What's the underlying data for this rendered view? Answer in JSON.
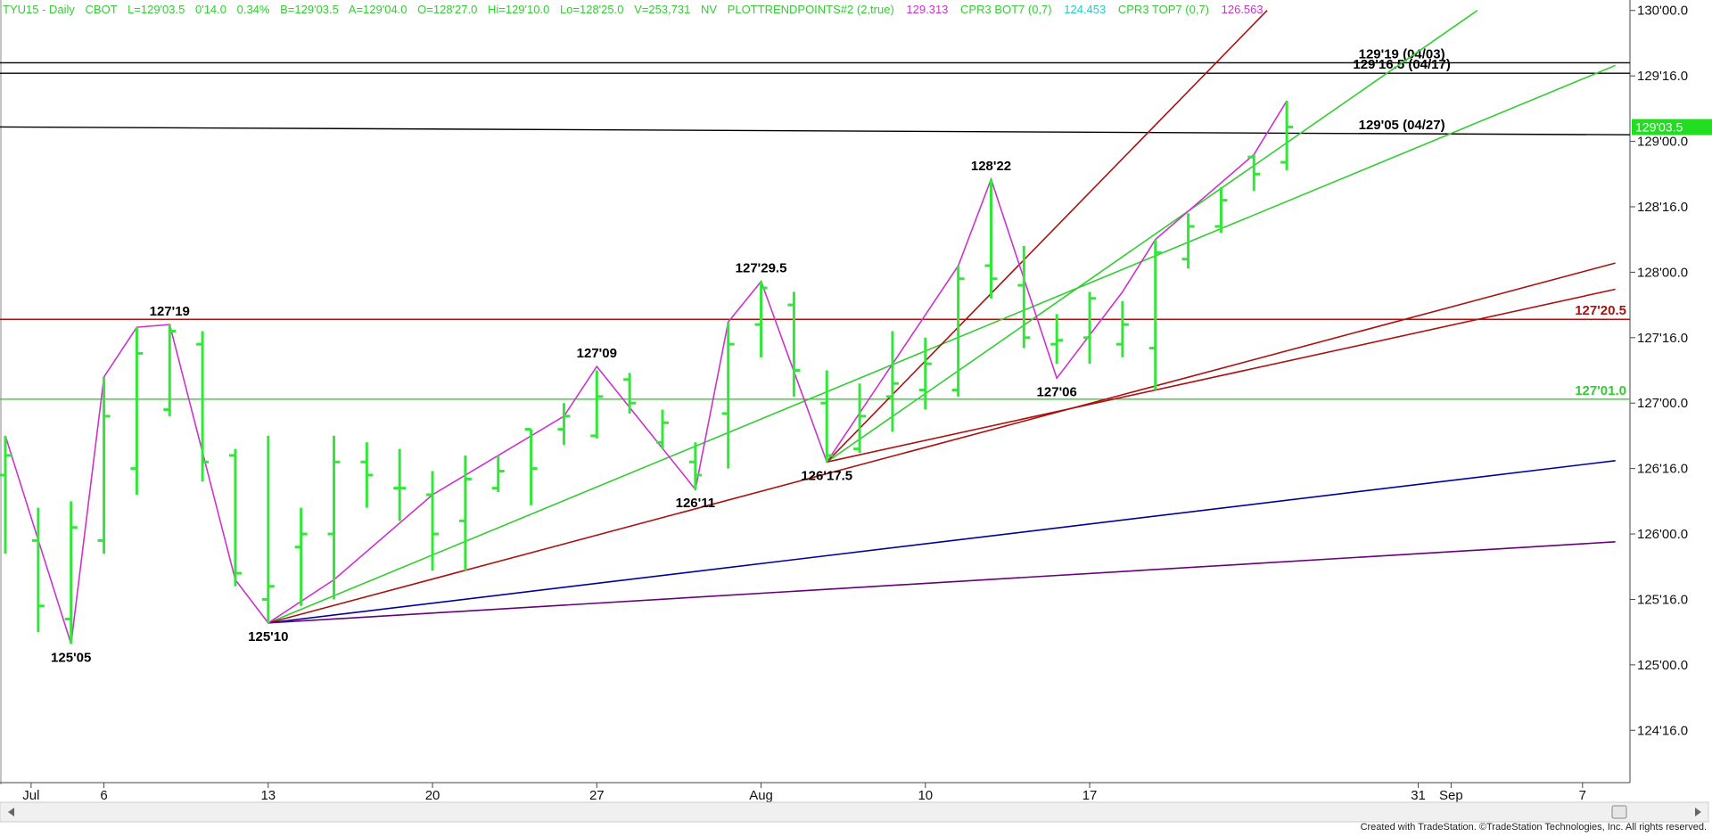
{
  "header": {
    "symbol": "TYU15 - Daily",
    "exchange": "CBOT",
    "last": "L=129'03.5",
    "change": "0'14.0",
    "change_pct": "0.34%",
    "bid": "B=129'03.5",
    "ask": "A=129'04.0",
    "open": "O=128'27.0",
    "high": "Hi=129'10.0",
    "low": "Lo=128'25.0",
    "volume": "V=253,731",
    "nv": "NV",
    "indicator1": "PLOTTRENDPOINTS#2 (2,true)",
    "indicator1_value": "129.313",
    "indicator2": "CPR3 BOT7 (0,7)",
    "indicator2_value": "124.453",
    "indicator3": "CPR3 TOP7 (0,7)",
    "indicator3_value": "126.563"
  },
  "colors": {
    "bars": "#33e63a",
    "zigzag": "#cc33cc",
    "green_line": "#33cc33",
    "red_line": "#aa1111",
    "blue_line": "#000099",
    "purple_line": "#660077",
    "black_line": "#000000",
    "price_marker": "#22dd22",
    "header_text": "#33cc33",
    "header_pink": "#cc33cc",
    "header_cyan": "#22cccc"
  },
  "footer": {
    "credit": "Created with TradeStation. ©TradeStation Technologies, Inc. All rights reserved."
  },
  "chart_data": {
    "type": "ohlc",
    "price_unit": "32nds",
    "y_ticks": [
      "124'16.0",
      "125'00.0",
      "125'16.0",
      "126'00.0",
      "126'16.0",
      "127'00.0",
      "127'16.0",
      "128'00.0",
      "128'16.0",
      "129'00.0",
      "129'16.0",
      "130'00.0"
    ],
    "y_tick_values": [
      124.5,
      125.0,
      125.5,
      126.0,
      126.5,
      127.0,
      127.5,
      128.0,
      128.5,
      129.0,
      129.5,
      130.0
    ],
    "ylim": [
      124.1,
      130.08
    ],
    "last_price_label": "129'03.5",
    "last_price": 129.109,
    "x_ticks": [
      {
        "label": "Jul",
        "idx": 1
      },
      {
        "label": "6",
        "idx": 3
      },
      {
        "label": "13",
        "idx": 8
      },
      {
        "label": "20",
        "idx": 13
      },
      {
        "label": "27",
        "idx": 18
      },
      {
        "label": "Aug",
        "idx": 23
      },
      {
        "label": "10",
        "idx": 28
      },
      {
        "label": "17",
        "idx": 33
      },
      {
        "label": "31",
        "idx": 43
      },
      {
        "label": "Sep",
        "idx": 44
      },
      {
        "label": "7",
        "idx": 48
      }
    ],
    "bars": [
      {
        "idx": 0,
        "o": 126.45,
        "h": 126.75,
        "l": 125.85,
        "c": 126.6
      },
      {
        "idx": 1,
        "o": 125.95,
        "h": 126.2,
        "l": 125.25,
        "c": 125.45
      },
      {
        "idx": 2,
        "o": 125.35,
        "h": 126.25,
        "l": 125.16,
        "c": 126.05
      },
      {
        "idx": 3,
        "o": 125.95,
        "h": 127.2,
        "l": 125.85,
        "c": 126.9
      },
      {
        "idx": 4,
        "o": 126.5,
        "h": 127.58,
        "l": 126.3,
        "c": 127.38
      },
      {
        "idx": 5,
        "o": 126.95,
        "h": 127.6,
        "l": 126.9,
        "c": 127.55
      },
      {
        "idx": 6,
        "o": 127.45,
        "h": 127.55,
        "l": 126.4,
        "c": 126.55
      },
      {
        "idx": 7,
        "o": 126.6,
        "h": 126.65,
        "l": 125.6,
        "c": 125.7
      },
      {
        "idx": 8,
        "o": 125.5,
        "h": 126.75,
        "l": 125.32,
        "c": 125.6
      },
      {
        "idx": 9,
        "o": 125.9,
        "h": 126.2,
        "l": 125.45,
        "c": 126.0
      },
      {
        "idx": 10,
        "o": 126.0,
        "h": 126.75,
        "l": 125.5,
        "c": 126.55
      },
      {
        "idx": 11,
        "o": 126.55,
        "h": 126.7,
        "l": 126.2,
        "c": 126.45
      },
      {
        "idx": 12,
        "o": 126.35,
        "h": 126.65,
        "l": 126.1,
        "c": 126.35
      },
      {
        "idx": 13,
        "o": 126.3,
        "h": 126.48,
        "l": 125.72,
        "c": 126.0
      },
      {
        "idx": 14,
        "o": 126.1,
        "h": 126.6,
        "l": 125.72,
        "c": 126.42
      },
      {
        "idx": 15,
        "o": 126.35,
        "h": 126.6,
        "l": 126.32,
        "c": 126.48
      },
      {
        "idx": 16,
        "o": 126.8,
        "h": 126.8,
        "l": 126.22,
        "c": 126.5
      },
      {
        "idx": 17,
        "o": 126.8,
        "h": 127.0,
        "l": 126.68,
        "c": 126.9
      },
      {
        "idx": 18,
        "o": 126.75,
        "h": 127.25,
        "l": 126.73,
        "c": 127.05
      },
      {
        "idx": 19,
        "o": 127.18,
        "h": 127.23,
        "l": 126.92,
        "c": 127.0
      },
      {
        "idx": 20,
        "o": 126.7,
        "h": 126.95,
        "l": 126.65,
        "c": 126.85
      },
      {
        "idx": 21,
        "o": 126.55,
        "h": 126.7,
        "l": 126.34,
        "c": 126.45
      },
      {
        "idx": 22,
        "o": 126.92,
        "h": 127.62,
        "l": 126.5,
        "c": 127.45
      },
      {
        "idx": 23,
        "o": 127.6,
        "h": 127.93,
        "l": 127.35,
        "c": 127.88
      },
      {
        "idx": 24,
        "o": 127.75,
        "h": 127.85,
        "l": 127.05,
        "c": 127.25
      },
      {
        "idx": 25,
        "o": 127.0,
        "h": 127.25,
        "l": 126.55,
        "c": 126.6
      },
      {
        "idx": 26,
        "o": 126.65,
        "h": 127.15,
        "l": 126.62,
        "c": 126.9
      },
      {
        "idx": 27,
        "o": 127.05,
        "h": 127.55,
        "l": 126.78,
        "c": 127.15
      },
      {
        "idx": 28,
        "o": 127.1,
        "h": 127.5,
        "l": 126.95,
        "c": 127.3
      },
      {
        "idx": 29,
        "o": 127.1,
        "h": 128.05,
        "l": 127.05,
        "c": 127.95
      },
      {
        "idx": 30,
        "o": 128.05,
        "h": 128.71,
        "l": 127.8,
        "c": 127.95
      },
      {
        "idx": 31,
        "o": 127.9,
        "h": 128.2,
        "l": 127.42,
        "c": 127.5
      },
      {
        "idx": 32,
        "o": 127.45,
        "h": 127.68,
        "l": 127.3,
        "c": 127.48
      },
      {
        "idx": 33,
        "o": 127.5,
        "h": 127.85,
        "l": 127.3,
        "c": 127.8
      },
      {
        "idx": 34,
        "o": 127.45,
        "h": 127.78,
        "l": 127.35,
        "c": 127.6
      },
      {
        "idx": 35,
        "o": 127.42,
        "h": 128.25,
        "l": 127.1,
        "c": 128.15
      },
      {
        "idx": 36,
        "o": 128.1,
        "h": 128.45,
        "l": 128.03,
        "c": 128.35
      },
      {
        "idx": 37,
        "o": 128.35,
        "h": 128.65,
        "l": 128.3,
        "c": 128.55
      },
      {
        "idx": 38,
        "o": 128.88,
        "h": 128.9,
        "l": 128.62,
        "c": 128.75
      },
      {
        "idx": 39,
        "o": 128.84,
        "h": 129.31,
        "l": 128.78,
        "c": 129.11
      }
    ],
    "zigzag": [
      {
        "idx": 0,
        "y": 126.75
      },
      {
        "idx": 2,
        "y": 125.16
      },
      {
        "idx": 3,
        "y": 127.2
      },
      {
        "idx": 4,
        "y": 127.58
      },
      {
        "idx": 5,
        "y": 127.6
      },
      {
        "idx": 7,
        "y": 125.65
      },
      {
        "idx": 8,
        "y": 125.32
      },
      {
        "idx": 10,
        "y": 125.65
      },
      {
        "idx": 13,
        "y": 126.3
      },
      {
        "idx": 17,
        "y": 126.9
      },
      {
        "idx": 18,
        "y": 127.28
      },
      {
        "idx": 21,
        "y": 126.34
      },
      {
        "idx": 22,
        "y": 127.62
      },
      {
        "idx": 23,
        "y": 127.93
      },
      {
        "idx": 25,
        "y": 126.55
      },
      {
        "idx": 29,
        "y": 128.05
      },
      {
        "idx": 30,
        "y": 128.71
      },
      {
        "idx": 32,
        "y": 127.19
      },
      {
        "idx": 34,
        "y": 127.85
      },
      {
        "idx": 35,
        "y": 128.25
      },
      {
        "idx": 38,
        "y": 128.9
      },
      {
        "idx": 39,
        "y": 129.31
      }
    ],
    "pivot_labels": [
      {
        "text": "125'05",
        "idx": 2,
        "y": 125.16,
        "pos": "below"
      },
      {
        "text": "127'19",
        "idx": 5,
        "y": 127.6,
        "pos": "above"
      },
      {
        "text": "125'10",
        "idx": 8,
        "y": 125.32,
        "pos": "below"
      },
      {
        "text": "127'09",
        "idx": 18,
        "y": 127.28,
        "pos": "above"
      },
      {
        "text": "126'11",
        "idx": 21,
        "y": 126.34,
        "pos": "below"
      },
      {
        "text": "127'29.5",
        "idx": 23,
        "y": 127.93,
        "pos": "above"
      },
      {
        "text": "126'17.5",
        "idx": 25,
        "y": 126.55,
        "pos": "below"
      },
      {
        "text": "128'22",
        "idx": 30,
        "y": 128.71,
        "pos": "above"
      },
      {
        "text": "127'06",
        "idx": 32,
        "y": 127.19,
        "pos": "below"
      }
    ],
    "levels": [
      {
        "label": "129'19 (04/03)",
        "y1": 129.6,
        "y2": 129.6,
        "color": "#000000",
        "label_idx": 42.5
      },
      {
        "label": "129'16.5 (04/17)",
        "y1": 129.52,
        "y2": 129.52,
        "color": "#000000",
        "label_idx": 42.5
      },
      {
        "label": "129'05 (04/27)",
        "y1": 129.11,
        "y2": 129.05,
        "color": "#000000",
        "label_idx": 42.5
      },
      {
        "label": "127'20.5",
        "y1": 127.64,
        "y2": 127.64,
        "color": "#aa1111",
        "label_idx": 48.5
      },
      {
        "label": "127'01.0",
        "y1": 127.03,
        "y2": 127.03,
        "color": "#33cc33",
        "label_idx": 48.5
      }
    ],
    "trendlines": [
      {
        "idx1": 8,
        "y1": 125.32,
        "idx2": 49,
        "y2": 129.58,
        "color": "#33cc33"
      },
      {
        "idx1": 25,
        "y1": 126.55,
        "idx2": 44.8,
        "y2": 130.0,
        "color": "#33cc33"
      },
      {
        "idx1": 8,
        "y1": 125.32,
        "idx2": 49,
        "y2": 128.07,
        "color": "#aa1111"
      },
      {
        "idx1": 25,
        "y1": 126.55,
        "idx2": 49,
        "y2": 127.87,
        "color": "#aa1111"
      },
      {
        "idx1": 25,
        "y1": 126.55,
        "idx2": 38.4,
        "y2": 130.0,
        "color": "#aa1111"
      },
      {
        "idx1": 8,
        "y1": 125.32,
        "idx2": 49,
        "y2": 126.56,
        "color": "#000099"
      },
      {
        "idx1": 8,
        "y1": 125.32,
        "idx2": 49,
        "y2": 125.94,
        "color": "#660077"
      }
    ]
  }
}
